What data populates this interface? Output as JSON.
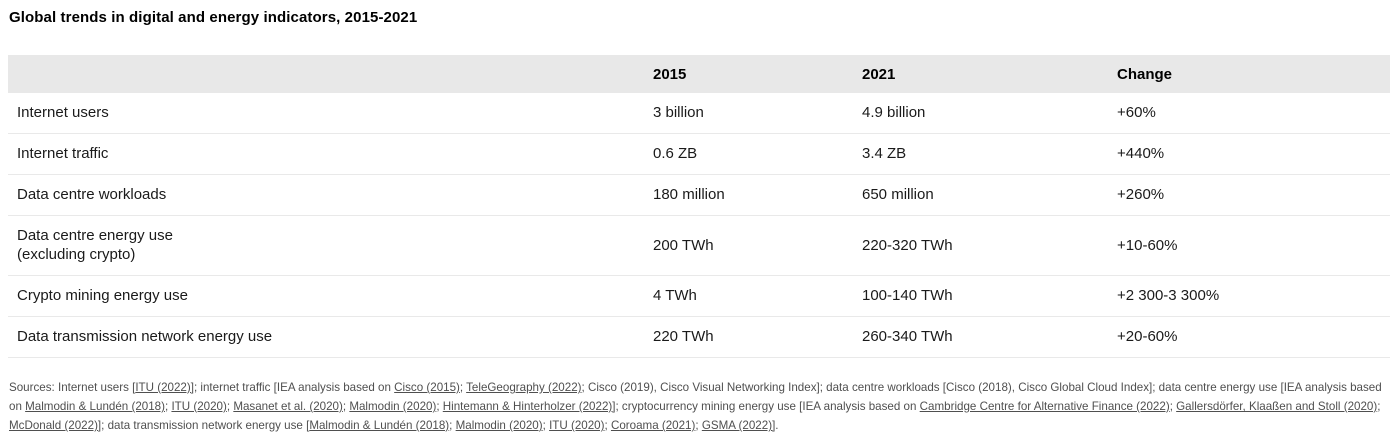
{
  "title": "Global trends in digital and energy indicators, 2015-2021",
  "colors": {
    "header_row_bg": "#e8e8e8",
    "row_divider": "#e9e9e9",
    "body_text": "#1a1a1a",
    "sources_text": "#4f4f4f"
  },
  "table": {
    "columns": [
      "",
      "2015",
      "2021",
      "Change"
    ],
    "rows": [
      {
        "label": "Internet users",
        "sublabel": "",
        "v2015": "3 billion",
        "v2021": "4.9 billion",
        "change": "+60%"
      },
      {
        "label": "Internet traffic",
        "sublabel": "",
        "v2015": "0.6 ZB",
        "v2021": "3.4 ZB",
        "change": "+440%"
      },
      {
        "label": "Data centre workloads",
        "sublabel": "",
        "v2015": "180 million",
        "v2021": "650 million",
        "change": "+260%"
      },
      {
        "label": "Data centre energy use",
        "sublabel": "(excluding crypto)",
        "v2015": "200 TWh",
        "v2021": "220-320 TWh",
        "change": "+10-60%"
      },
      {
        "label": "Crypto mining energy use",
        "sublabel": "",
        "v2015": "4 TWh",
        "v2021": "100-140 TWh",
        "change": "+2 300-3 300%"
      },
      {
        "label": "Data transmission network energy use",
        "sublabel": "",
        "v2015": "220 TWh",
        "v2021": "260-340 TWh",
        "change": "+20-60%"
      }
    ]
  },
  "sources": {
    "segments": [
      {
        "t": "Sources: Internet users [",
        "link": false
      },
      {
        "t": "ITU (2022)]",
        "link": true
      },
      {
        "t": "; internet traffic [IEA analysis based on ",
        "link": false
      },
      {
        "t": "Cisco (2015)",
        "link": true
      },
      {
        "t": "; ",
        "link": false
      },
      {
        "t": "TeleGeography (2022)",
        "link": true
      },
      {
        "t": "; Cisco (2019), Cisco Visual Networking Index]; data centre workloads [Cisco (2018), Cisco Global Cloud Index]; data centre energy use [IEA analysis based on ",
        "link": false
      },
      {
        "t": "Malmodin & Lundén (2018)",
        "link": true
      },
      {
        "t": "; ",
        "link": false
      },
      {
        "t": "ITU (2020)",
        "link": true
      },
      {
        "t": "; ",
        "link": false
      },
      {
        "t": "Masanet et al. (2020)",
        "link": true
      },
      {
        "t": "; ",
        "link": false
      },
      {
        "t": "Malmodin (2020)",
        "link": true
      },
      {
        "t": "; ",
        "link": false
      },
      {
        "t": "Hintemann & Hinterholzer (2022)]",
        "link": true
      },
      {
        "t": "; cryptocurrency mining energy use [IEA analysis based on ",
        "link": false
      },
      {
        "t": "Cambridge Centre for Alternative Finance (2022)",
        "link": true
      },
      {
        "t": "; ",
        "link": false
      },
      {
        "t": "Gallersdörfer, Klaaßen and Stoll (2020)",
        "link": true
      },
      {
        "t": "; ",
        "link": false
      },
      {
        "t": "McDonald (2022)]",
        "link": true
      },
      {
        "t": "; data transmission network energy use [",
        "link": false
      },
      {
        "t": "Malmodin & Lundén (2018)",
        "link": true
      },
      {
        "t": "; ",
        "link": false
      },
      {
        "t": "Malmodin (2020)",
        "link": true
      },
      {
        "t": "; ",
        "link": false
      },
      {
        "t": "ITU (2020)",
        "link": true
      },
      {
        "t": "; ",
        "link": false
      },
      {
        "t": "Coroama (2021)",
        "link": true
      },
      {
        "t": "; ",
        "link": false
      },
      {
        "t": "GSMA (2022)]",
        "link": true
      },
      {
        "t": ".",
        "link": false
      }
    ]
  }
}
